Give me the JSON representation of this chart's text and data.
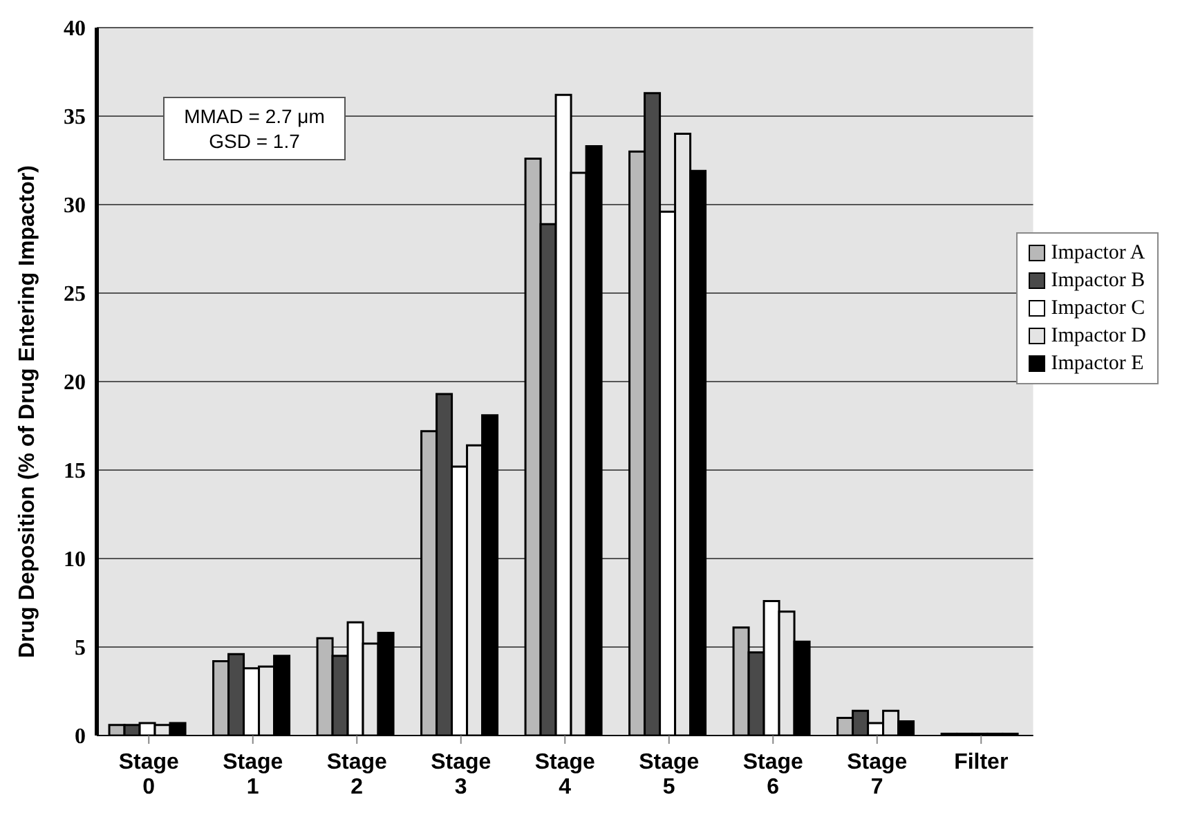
{
  "chart_data": {
    "type": "bar",
    "ylabel": "Drug Deposition (% of Drug Entering Impactor)",
    "categories": [
      "Stage 0",
      "Stage 1",
      "Stage 2",
      "Stage 3",
      "Stage 4",
      "Stage 5",
      "Stage 6",
      "Stage 7",
      "Filter"
    ],
    "series": [
      {
        "name": "Impactor A",
        "color": "#b8b8b8",
        "values": [
          0.6,
          4.2,
          5.5,
          17.2,
          32.6,
          33.0,
          6.1,
          1.0,
          0.1
        ]
      },
      {
        "name": "Impactor B",
        "color": "#4a4a4a",
        "values": [
          0.6,
          4.6,
          4.5,
          19.3,
          28.9,
          36.3,
          4.7,
          1.4,
          0.1
        ]
      },
      {
        "name": "Impactor C",
        "color": "#ffffff",
        "values": [
          0.7,
          3.8,
          6.4,
          15.2,
          36.2,
          29.6,
          7.6,
          0.7,
          0.1
        ]
      },
      {
        "name": "Impactor D",
        "color": "#e4e4e4",
        "values": [
          0.6,
          3.9,
          5.2,
          16.4,
          31.8,
          34.0,
          7.0,
          1.4,
          0.1
        ]
      },
      {
        "name": "Impactor E",
        "color": "#000000",
        "values": [
          0.7,
          4.5,
          5.8,
          18.1,
          33.3,
          31.9,
          5.3,
          0.8,
          0.1
        ]
      }
    ],
    "ylim": [
      0,
      40
    ],
    "yticks": [
      0,
      5,
      10,
      15,
      20,
      25,
      30,
      35,
      40
    ],
    "grid": "y",
    "legend": "right",
    "annotations": [
      "MMAD = 2.7 μm",
      "GSD = 1.7"
    ]
  }
}
